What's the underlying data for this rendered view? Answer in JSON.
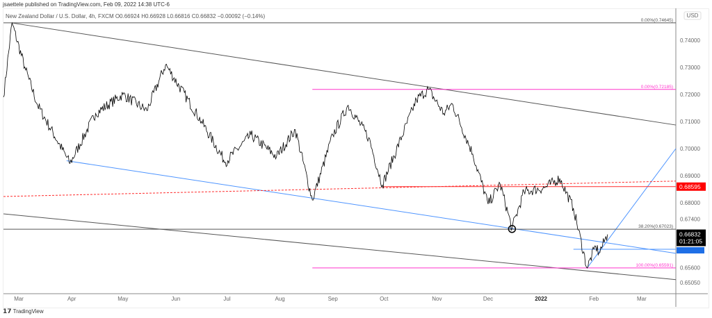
{
  "header": {
    "published": "jsaettele published on TradingView.com, Feb 09, 2022 14:38 UTC-6",
    "symbol": "New Zealand Dollar / U.S. Dollar, 4h, FXCM  O0.66924  H0.66928  L0.66816  C0.66832  −0.00092 (−0.14%)"
  },
  "footer": {
    "logo": "TradingView"
  },
  "colors": {
    "price": "#000000",
    "trend": "#555555",
    "blue": "#4d94ff",
    "red": "#ff2a2a",
    "magenta": "#ff33cc",
    "last_label": "#000000",
    "red_label": "#ff0000",
    "blue_label": "#1e6fe6"
  },
  "chart_data": {
    "type": "line",
    "currency_label": "USD",
    "xlim": [
      "2021-02-20",
      "2022-03-21"
    ],
    "ylim": [
      0.6464,
      0.7518
    ],
    "grid": false,
    "x_ticks": [
      {
        "label": "Mar",
        "date": "2021-03-01"
      },
      {
        "label": "Apr",
        "date": "2021-04-01"
      },
      {
        "label": "May",
        "date": "2021-05-01"
      },
      {
        "label": "Jun",
        "date": "2021-06-01"
      },
      {
        "label": "Jul",
        "date": "2021-07-01"
      },
      {
        "label": "Aug",
        "date": "2021-08-01"
      },
      {
        "label": "Sep",
        "date": "2021-09-01"
      },
      {
        "label": "Oct",
        "date": "2021-10-01"
      },
      {
        "label": "Nov",
        "date": "2021-11-01"
      },
      {
        "label": "Dec",
        "date": "2021-12-01"
      },
      {
        "label": "2022",
        "date": "2022-01-01"
      },
      {
        "label": "Feb",
        "date": "2022-02-01"
      },
      {
        "label": "Mar",
        "date": "2022-03-01"
      }
    ],
    "y_ticks": [
      "0.74000",
      "0.73000",
      "0.72000",
      "0.71000",
      "0.70000",
      "0.69000",
      "0.68000",
      "0.67400",
      "0.66200",
      "0.65600",
      "0.65050"
    ],
    "price_path": [
      [
        "2021-02-20",
        0.719
      ],
      [
        "2021-02-25",
        0.7464
      ],
      [
        "2021-03-05",
        0.729
      ],
      [
        "2021-03-12",
        0.716
      ],
      [
        "2021-03-31",
        0.6945
      ],
      [
        "2021-04-15",
        0.713
      ],
      [
        "2021-05-01",
        0.72
      ],
      [
        "2021-05-15",
        0.714
      ],
      [
        "2021-05-26",
        0.731
      ],
      [
        "2021-06-16",
        0.71
      ],
      [
        "2021-06-30",
        0.695
      ],
      [
        "2021-07-15",
        0.705
      ],
      [
        "2021-07-30",
        0.697
      ],
      [
        "2021-08-10",
        0.707
      ],
      [
        "2021-08-20",
        0.681
      ],
      [
        "2021-09-01",
        0.705
      ],
      [
        "2021-09-10",
        0.716
      ],
      [
        "2021-09-22",
        0.704
      ],
      [
        "2021-09-30",
        0.6865
      ],
      [
        "2021-10-20",
        0.718
      ],
      [
        "2021-10-27",
        0.7219
      ],
      [
        "2021-11-05",
        0.713
      ],
      [
        "2021-11-10",
        0.7165
      ],
      [
        "2021-11-22",
        0.698
      ],
      [
        "2021-12-01",
        0.6795
      ],
      [
        "2021-12-08",
        0.687
      ],
      [
        "2021-12-15",
        0.6705
      ],
      [
        "2021-12-22",
        0.684
      ],
      [
        "2022-01-03",
        0.6855
      ],
      [
        "2022-01-12",
        0.689
      ],
      [
        "2022-01-20",
        0.678
      ],
      [
        "2022-01-28",
        0.6559
      ],
      [
        "2022-02-02",
        0.664
      ],
      [
        "2022-02-04",
        0.6615
      ],
      [
        "2022-02-09",
        0.6683
      ]
    ],
    "lines": [
      {
        "kind": "trend",
        "color": "trend",
        "from": [
          "2021-02-25",
          0.7464
        ],
        "to": [
          "2022-03-21",
          0.7087
        ]
      },
      {
        "kind": "trend",
        "color": "trend",
        "from": [
          "2021-02-20",
          0.6759
        ],
        "to": [
          "2022-03-21",
          0.6516
        ]
      },
      {
        "kind": "trend",
        "color": "blue",
        "from": [
          "2021-03-29",
          0.6955
        ],
        "to": [
          "2022-03-21",
          0.6613
        ]
      },
      {
        "kind": "trend",
        "color": "blue",
        "from": [
          "2022-01-28",
          0.6559
        ],
        "to": [
          "2022-03-21",
          0.7
        ]
      },
      {
        "kind": "hline",
        "color": "blue",
        "from": [
          "2022-01-20",
          0.6628
        ],
        "to": [
          "2022-03-21",
          0.6628
        ]
      },
      {
        "kind": "dashed",
        "color": "red",
        "from": [
          "2021-02-20",
          0.6823
        ],
        "to": [
          "2022-03-21",
          0.688
        ]
      },
      {
        "kind": "hline",
        "color": "red",
        "from": [
          "2021-09-30",
          0.68595
        ],
        "to": [
          "2022-03-21",
          0.68595
        ]
      },
      {
        "kind": "hline",
        "color": "trend",
        "from": [
          "2021-02-20",
          0.74645
        ],
        "to": [
          "2022-03-21",
          0.74645
        ],
        "label": "0.00%(0.74645)"
      },
      {
        "kind": "hline",
        "color": "magenta",
        "from": [
          "2021-08-20",
          0.72185
        ],
        "to": [
          "2022-03-21",
          0.72185
        ],
        "label": "0.00%(0.72185)"
      },
      {
        "kind": "hline",
        "color": "trend",
        "from": [
          "2021-02-20",
          0.67023
        ],
        "to": [
          "2022-03-21",
          0.67023
        ],
        "label": "38.20%(0.67023)"
      },
      {
        "kind": "hline",
        "color": "magenta",
        "from": [
          "2021-08-20",
          0.65591
        ],
        "to": [
          "2022-03-21",
          0.65591
        ],
        "label": "100.00%(0.65591)"
      }
    ],
    "circle": [
      "2021-12-15",
      0.6703
    ],
    "price_labels": {
      "red": "0.68595",
      "last": "0.66832",
      "countdown": "01:21:05",
      "last_value": 0.66832,
      "blue_value": 0.6628
    }
  }
}
